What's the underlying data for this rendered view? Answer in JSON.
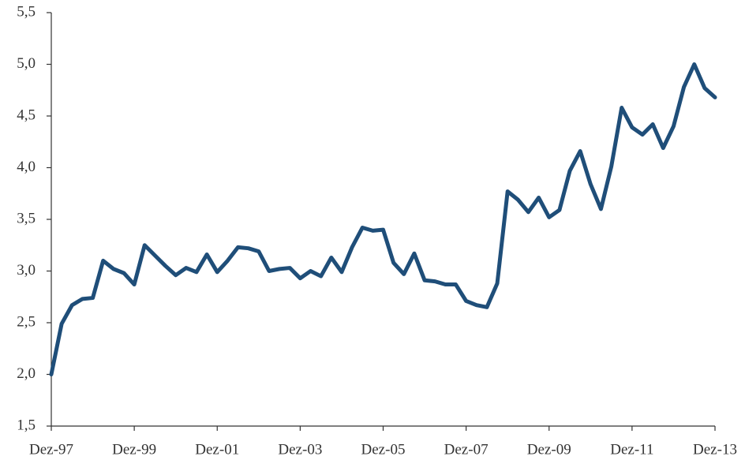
{
  "chart_data": {
    "type": "line",
    "categories": [
      "Dez-97",
      null,
      null,
      null,
      null,
      null,
      null,
      null,
      "Dez-99",
      null,
      null,
      null,
      null,
      null,
      null,
      null,
      "Dez-01",
      null,
      null,
      null,
      null,
      null,
      null,
      null,
      "Dez-03",
      null,
      null,
      null,
      null,
      null,
      null,
      null,
      "Dez-05",
      null,
      null,
      null,
      null,
      null,
      null,
      null,
      "Dez-07",
      null,
      null,
      null,
      null,
      null,
      null,
      null,
      "Dez-09",
      null,
      null,
      null,
      null,
      null,
      null,
      null,
      "Dez-11",
      null,
      null,
      null,
      null,
      null,
      null,
      null,
      "Dez-13"
    ],
    "values": [
      2.0,
      2.49,
      2.67,
      2.73,
      2.74,
      3.1,
      3.02,
      2.98,
      2.87,
      3.25,
      3.15,
      3.05,
      2.96,
      3.03,
      2.99,
      3.16,
      2.99,
      3.1,
      3.23,
      3.22,
      3.19,
      3.0,
      3.02,
      3.03,
      2.93,
      3.0,
      2.95,
      3.13,
      2.99,
      3.23,
      3.42,
      3.39,
      3.4,
      3.08,
      2.97,
      3.17,
      2.91,
      2.9,
      2.87,
      2.87,
      2.71,
      2.67,
      2.65,
      2.88,
      3.77,
      3.69,
      3.57,
      3.71,
      3.52,
      3.59,
      3.97,
      4.16,
      3.84,
      3.6,
      4.01,
      4.58,
      4.39,
      4.32,
      4.42,
      4.19,
      4.4,
      4.78,
      5.0,
      4.77,
      4.68
    ],
    "color": "#1f4e79",
    "ylim": [
      1.5,
      5.5
    ],
    "yticks": [
      {
        "value": 1.5,
        "label": "1,5"
      },
      {
        "value": 2.0,
        "label": "2,0"
      },
      {
        "value": 2.5,
        "label": "2,5"
      },
      {
        "value": 3.0,
        "label": "3,0"
      },
      {
        "value": 3.5,
        "label": "3,5"
      },
      {
        "value": 4.0,
        "label": "4,0"
      },
      {
        "value": 4.5,
        "label": "4,5"
      },
      {
        "value": 5.0,
        "label": "5,0"
      },
      {
        "value": 5.5,
        "label": "5,5"
      }
    ],
    "grid": false
  }
}
